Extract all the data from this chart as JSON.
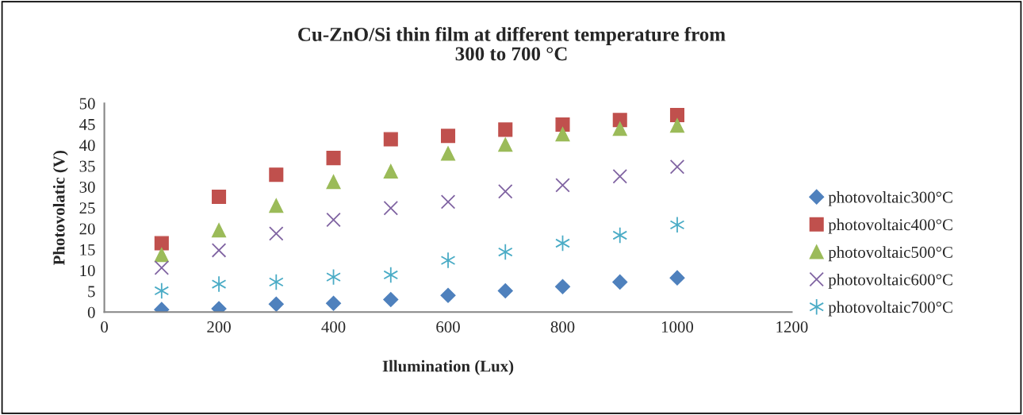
{
  "chart_data": {
    "type": "scatter",
    "title": "Cu-ZnO/Si thin film at different temperature from\n300 to 700 °C",
    "xlabel": "Illumination (Lux)",
    "ylabel": "Photovolatic (V)",
    "x": [
      100,
      200,
      300,
      400,
      500,
      600,
      700,
      800,
      900,
      1000
    ],
    "series": [
      {
        "name": "photovoltaic300°C",
        "color": "#4f81bd",
        "marker": "diamond",
        "values": [
          0.6,
          0.8,
          1.9,
          2.1,
          3.0,
          4.0,
          5.1,
          6.1,
          7.2,
          8.2
        ]
      },
      {
        "name": "photovoltaic400°C",
        "color": "#c0504d",
        "marker": "square",
        "values": [
          16.5,
          27.6,
          32.9,
          36.9,
          41.4,
          42.2,
          43.7,
          44.9,
          46.0,
          47.2
        ]
      },
      {
        "name": "photovoltaic500°C",
        "color": "#9bbb59",
        "marker": "triangle",
        "values": [
          13.7,
          19.6,
          25.5,
          31.2,
          33.7,
          38.0,
          40.1,
          42.6,
          43.9,
          44.7
        ]
      },
      {
        "name": "photovoltaic600°C",
        "color": "#8064a2",
        "marker": "cross",
        "values": [
          10.6,
          14.8,
          18.8,
          22.1,
          24.9,
          26.4,
          28.9,
          30.4,
          32.5,
          34.8
        ]
      },
      {
        "name": "photovoltaic700°C",
        "color": "#4bacc6",
        "values": [
          5.1,
          6.7,
          7.2,
          8.4,
          8.9,
          12.4,
          14.4,
          16.5,
          18.4,
          20.9
        ]
      }
    ],
    "xlim": [
      0,
      1200
    ],
    "xticks": [
      0,
      200,
      400,
      600,
      800,
      1000,
      1200
    ],
    "ylim": [
      0,
      50
    ],
    "yticks": [
      0,
      5,
      10,
      15,
      20,
      25,
      30,
      35,
      40,
      45,
      50
    ],
    "grid": false,
    "legend": "right"
  }
}
